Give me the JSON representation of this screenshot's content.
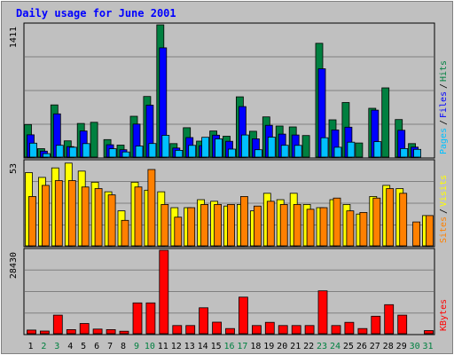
{
  "chart_data": {
    "type": "bar",
    "title": "Daily usage for June 2001",
    "categories": [
      "1",
      "2",
      "3",
      "4",
      "5",
      "6",
      "7",
      "8",
      "9",
      "10",
      "11",
      "12",
      "13",
      "14",
      "15",
      "16",
      "17",
      "18",
      "19",
      "20",
      "21",
      "22",
      "23",
      "24",
      "25",
      "26",
      "27",
      "28",
      "29",
      "30",
      "31"
    ],
    "weekend_days": [
      "2",
      "3",
      "9",
      "10",
      "16",
      "17",
      "23",
      "24",
      "30",
      "31"
    ],
    "colors": {
      "background": "#c0c0c0",
      "title": "#0000ff",
      "hits": "#008040",
      "files": "#0000ff",
      "pages": "#00c0ff",
      "visits": "#ffff00",
      "sites": "#ff8000",
      "kbytes": "#ff0000",
      "weekend_label": "#008040",
      "weekday_label": "#000000"
    },
    "panels": [
      {
        "id": "hits-files-pages",
        "ymax_label": "1411",
        "ymax": 1411,
        "series": [
          {
            "name": "Hits",
            "values": [
              348,
              90,
              557,
              173,
              359,
              371,
              187,
              128,
              436,
              647,
              1411,
              144,
              313,
              170,
              278,
              223,
              643,
              276,
              429,
              331,
              322,
              230,
              1214,
              398,
              582,
              151,
              521,
              739,
              401,
              144,
              0
            ]
          },
          {
            "name": "Files",
            "values": [
              238,
              63,
              461,
              112,
              278,
              0,
              132,
              79,
              352,
              554,
              1166,
              97,
              208,
              121,
              234,
              169,
              539,
              195,
              339,
              245,
              236,
              0,
              942,
              290,
              319,
              0,
              501,
              0,
              286,
              106,
              0
            ]
          },
          {
            "name": "Pages",
            "values": [
              149,
              37,
              126,
              105,
              144,
              0,
              89,
              55,
              117,
              145,
              232,
              72,
              125,
              211,
              194,
              85,
              236,
              79,
              213,
              126,
              125,
              0,
              206,
              105,
              159,
              0,
              165,
              0,
              91,
              82,
              0
            ]
          }
        ],
        "legend": [
          "Pages",
          "Files",
          "Hits"
        ]
      },
      {
        "id": "visits-sites",
        "ymax_label": "53",
        "ymax": 53,
        "series": [
          {
            "name": "Visits",
            "values": [
              46,
              43,
              49,
              52,
              47,
              40,
              34,
              22,
              40,
              35,
              34,
              24,
              24,
              29,
              28,
              25,
              26,
              22,
              33,
              29,
              33,
              26,
              24,
              29,
              26,
              20,
              31,
              38,
              36,
              0,
              19
            ]
          },
          {
            "name": "Sites",
            "values": [
              31,
              38,
              41,
              41,
              37,
              36,
              32,
              16,
              37,
              48,
              26,
              18,
              24,
              26,
              26,
              26,
              31,
              25,
              28,
              26,
              26,
              23,
              24,
              30,
              22,
              21,
              30,
              36,
              33,
              15,
              19
            ]
          }
        ],
        "legend": [
          "Sites",
          "Visits"
        ]
      },
      {
        "id": "kbytes",
        "ymax_label": "28430",
        "ymax": 28430,
        "series": [
          {
            "name": "KBytes",
            "values": [
              1228,
              914,
              6325,
              1402,
              3470,
              1577,
              1393,
              839,
              10508,
              10508,
              28430,
              2791,
              2791,
              8820,
              3924,
              1752,
              12457,
              2791,
              3860,
              2791,
              2791,
              2791,
              14598,
              2791,
              3860,
              1752,
              5969,
              9875,
              6325,
              0,
              1045
            ]
          }
        ],
        "legend": [
          "KBytes"
        ]
      }
    ]
  }
}
